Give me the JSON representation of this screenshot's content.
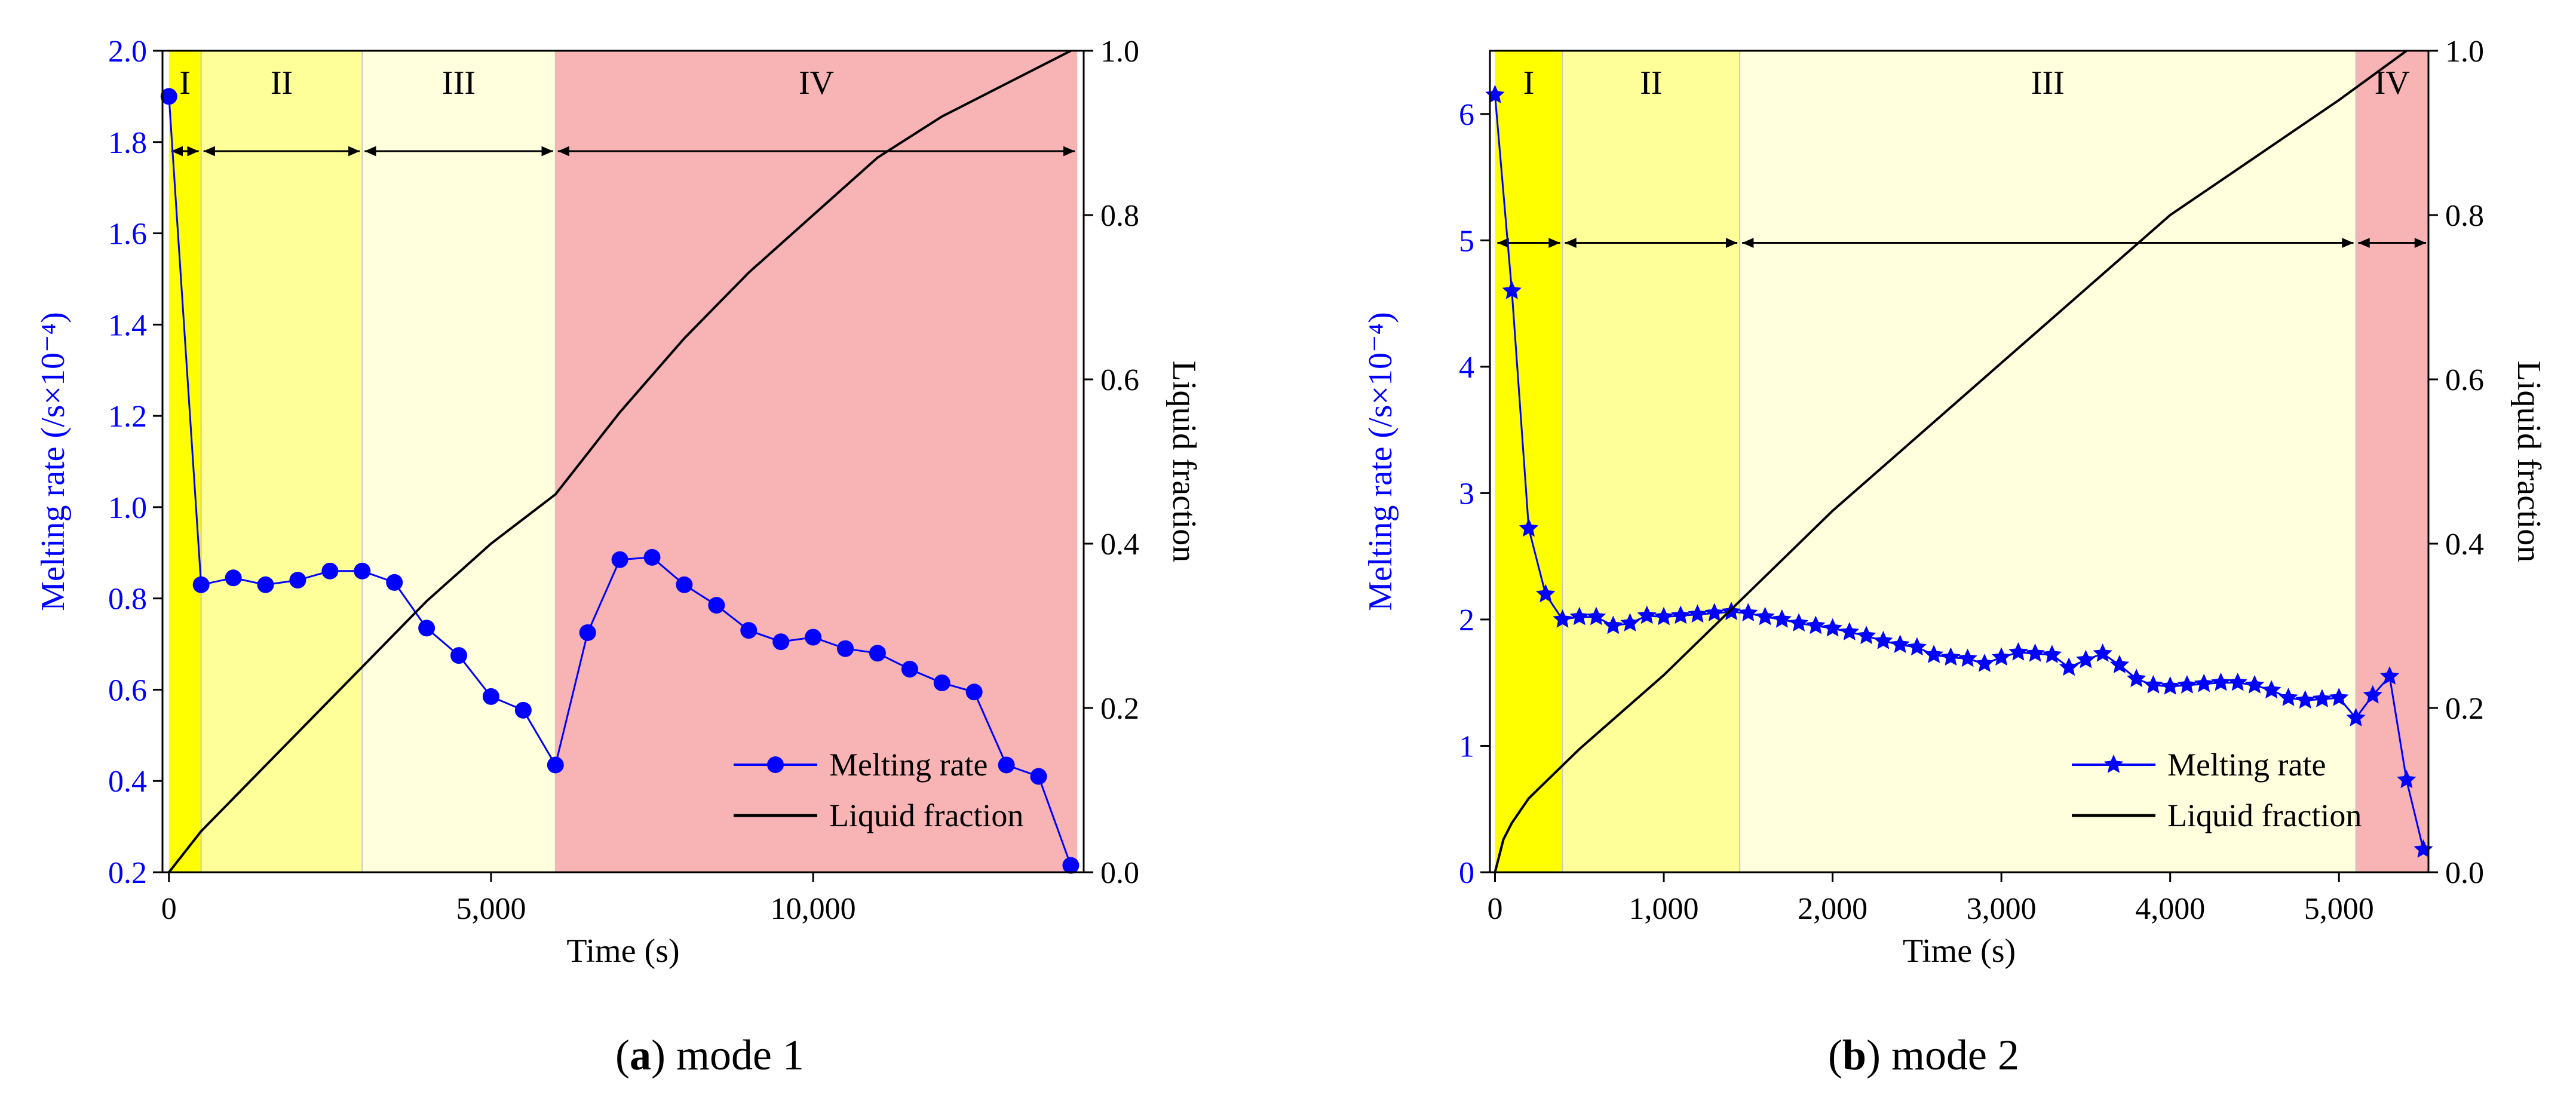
{
  "chart_data": [
    {
      "type": "line",
      "caption_letter": "a",
      "caption_text": "mode 1",
      "xlabel": "Time (s)",
      "ylabel": "Melting rate (/s×10⁻⁴)",
      "y2label": "Liquid fraction",
      "xlim": [
        -100,
        14200
      ],
      "ylim": [
        0.2,
        2.0
      ],
      "y2lim": [
        0.0,
        1.0
      ],
      "xticks": [
        0,
        5000,
        10000
      ],
      "xtick_labels": [
        "0",
        "5,000",
        "10,000"
      ],
      "yticks": [
        0.2,
        0.4,
        0.6,
        0.8,
        1.0,
        1.2,
        1.4,
        1.6,
        1.8,
        2.0
      ],
      "ytick_labels": [
        "0.2",
        "0.4",
        "0.6",
        "0.8",
        "1.0",
        "1.2",
        "1.4",
        "1.6",
        "1.8",
        "2.0"
      ],
      "y2ticks": [
        0.0,
        0.2,
        0.4,
        0.6,
        0.8,
        1.0
      ],
      "y2tick_labels": [
        "0.0",
        "0.2",
        "0.4",
        "0.6",
        "0.8",
        "1.0"
      ],
      "stages": [
        {
          "label": "I",
          "x0": 0,
          "x1": 500,
          "color": "#ffff00"
        },
        {
          "label": "II",
          "x0": 500,
          "x1": 3000,
          "color": "#ffff99"
        },
        {
          "label": "III",
          "x0": 3000,
          "x1": 6000,
          "color": "#ffffdd"
        },
        {
          "label": "IV",
          "x0": 6000,
          "x1": 14100,
          "color": "#f8b4b4"
        }
      ],
      "stage_arrow_y": 1.78,
      "series": [
        {
          "name": "Melting rate",
          "axis": "left",
          "color": "#0000ff",
          "marker": "circle",
          "x": [
            0,
            500,
            1000,
            1500,
            2000,
            2500,
            3000,
            3500,
            4000,
            4500,
            5000,
            5500,
            6000,
            6500,
            7000,
            7500,
            8000,
            8500,
            9000,
            9500,
            10000,
            10500,
            11000,
            11500,
            12000,
            12500,
            13000,
            13500,
            14000
          ],
          "y": [
            1.9,
            0.83,
            0.845,
            0.83,
            0.84,
            0.86,
            0.86,
            0.835,
            0.735,
            0.675,
            0.585,
            0.555,
            0.435,
            0.725,
            0.885,
            0.89,
            0.83,
            0.785,
            0.73,
            0.705,
            0.715,
            0.69,
            0.68,
            0.645,
            0.615,
            0.595,
            0.435,
            0.41,
            0.215
          ]
        },
        {
          "name": "Liquid fraction",
          "axis": "right",
          "color": "#000000",
          "marker": "none",
          "x": [
            0,
            500,
            1000,
            2000,
            3000,
            4000,
            5000,
            6000,
            6500,
            7000,
            8000,
            9000,
            10000,
            11000,
            12000,
            13000,
            14000
          ],
          "y": [
            0.0,
            0.05,
            0.09,
            0.17,
            0.25,
            0.33,
            0.4,
            0.46,
            0.51,
            0.56,
            0.65,
            0.73,
            0.8,
            0.87,
            0.92,
            0.96,
            1.0
          ]
        }
      ],
      "legend_location": "lower-right"
    },
    {
      "type": "line",
      "caption_letter": "b",
      "caption_text": "mode 2",
      "xlabel": "Time (s)",
      "ylabel": "Melting rate (/s×10⁻⁴)",
      "y2label": "Liquid fraction",
      "xlim": [
        -30,
        5530
      ],
      "ylim": [
        0,
        6.5
      ],
      "y2lim": [
        0.0,
        1.0
      ],
      "xticks": [
        0,
        1000,
        2000,
        3000,
        4000,
        5000
      ],
      "xtick_labels": [
        "0",
        "1,000",
        "2,000",
        "3,000",
        "4,000",
        "5,000"
      ],
      "yticks": [
        0,
        1,
        2,
        3,
        4,
        5,
        6
      ],
      "ytick_labels": [
        "0",
        "1",
        "2",
        "3",
        "4",
        "5",
        "6"
      ],
      "y2ticks": [
        0.0,
        0.2,
        0.4,
        0.6,
        0.8,
        1.0
      ],
      "y2tick_labels": [
        "0.0",
        "0.2",
        "0.4",
        "0.6",
        "0.8",
        "1.0"
      ],
      "stages": [
        {
          "label": "I",
          "x0": 0,
          "x1": 400,
          "color": "#ffff00"
        },
        {
          "label": "II",
          "x0": 400,
          "x1": 1450,
          "color": "#ffff99"
        },
        {
          "label": "III",
          "x0": 1450,
          "x1": 5100,
          "color": "#ffffdd"
        },
        {
          "label": "IV",
          "x0": 5100,
          "x1": 5530,
          "color": "#f8b4b4"
        }
      ],
      "stage_arrow_y": 4.98,
      "series": [
        {
          "name": "Melting rate",
          "axis": "left",
          "color": "#0000ff",
          "marker": "star",
          "x": [
            0,
            100,
            200,
            300,
            400,
            500,
            600,
            700,
            800,
            900,
            1000,
            1100,
            1200,
            1300,
            1400,
            1500,
            1600,
            1700,
            1800,
            1900,
            2000,
            2100,
            2200,
            2300,
            2400,
            2500,
            2600,
            2700,
            2800,
            2900,
            3000,
            3100,
            3200,
            3300,
            3400,
            3500,
            3600,
            3700,
            3800,
            3900,
            4000,
            4100,
            4200,
            4300,
            4400,
            4500,
            4600,
            4700,
            4800,
            4900,
            5000,
            5100,
            5200,
            5300,
            5400,
            5500
          ],
          "y": [
            6.15,
            4.6,
            2.72,
            2.2,
            2.0,
            2.02,
            2.02,
            1.95,
            1.97,
            2.03,
            2.02,
            2.03,
            2.04,
            2.05,
            2.06,
            2.05,
            2.02,
            2.0,
            1.97,
            1.95,
            1.93,
            1.9,
            1.87,
            1.83,
            1.8,
            1.78,
            1.72,
            1.7,
            1.69,
            1.65,
            1.7,
            1.74,
            1.73,
            1.72,
            1.62,
            1.68,
            1.73,
            1.64,
            1.53,
            1.48,
            1.47,
            1.48,
            1.49,
            1.5,
            1.5,
            1.48,
            1.44,
            1.38,
            1.36,
            1.37,
            1.38,
            1.22,
            1.4,
            1.55,
            0.73,
            0.18
          ]
        },
        {
          "name": "Liquid fraction",
          "axis": "right",
          "color": "#000000",
          "marker": "none",
          "x": [
            0,
            50,
            100,
            200,
            300,
            400,
            500,
            1000,
            1500,
            2000,
            2500,
            3000,
            3500,
            4000,
            4500,
            5000,
            5200,
            5400
          ],
          "y": [
            0.0,
            0.04,
            0.06,
            0.09,
            0.11,
            0.13,
            0.15,
            0.24,
            0.34,
            0.44,
            0.53,
            0.62,
            0.71,
            0.8,
            0.87,
            0.94,
            0.97,
            1.0
          ]
        }
      ],
      "legend_location": "lower-right"
    }
  ]
}
